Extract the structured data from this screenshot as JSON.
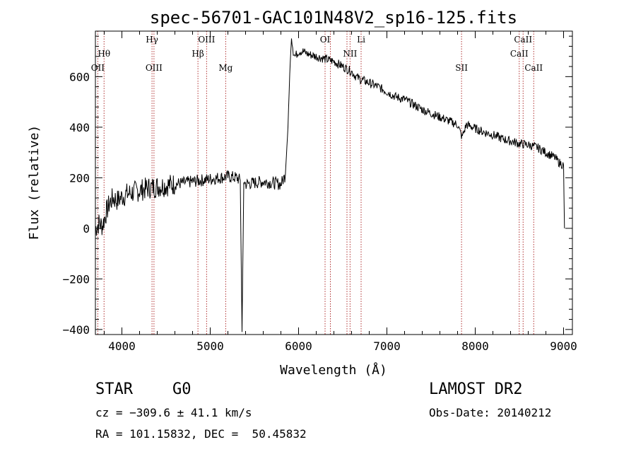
{
  "chart_data": {
    "type": "line",
    "title": "spec-56701-GAC101N48V2_sp16-125.fits",
    "xlabel": "Wavelength (Å)",
    "ylabel": "Flux (relative)",
    "xlim": [
      3700,
      9100
    ],
    "ylim": [
      -420,
      780
    ],
    "xticks": [
      4000,
      5000,
      6000,
      7000,
      8000,
      9000
    ],
    "yticks": [
      -400,
      -200,
      0,
      200,
      400,
      600
    ],
    "grid": false,
    "line_color": "#000000",
    "marker_color": "#b03030",
    "series": [
      {
        "x": [
          3700,
          3740,
          3780,
          3820,
          3860,
          3900,
          3950,
          4000,
          4050,
          4100,
          4200,
          4300,
          4400,
          4500,
          4600,
          4700,
          4800,
          4900,
          5000,
          5100,
          5200,
          5300,
          5340,
          5360,
          5380,
          5400,
          5500,
          5600,
          5700,
          5800,
          5850,
          5880,
          5900,
          5920,
          5940,
          5960,
          5980,
          6000,
          6050,
          6100,
          6200,
          6300,
          6400,
          6500,
          6550,
          6600,
          6650,
          6700,
          6800,
          6900,
          7000,
          7100,
          7200,
          7300,
          7400,
          7500,
          7600,
          7700,
          7800,
          7850,
          7900,
          8000,
          8100,
          8200,
          8300,
          8400,
          8500,
          8600,
          8700,
          8800,
          8900,
          8950,
          9000,
          9010
        ],
        "y": [
          0,
          20,
          10,
          60,
          100,
          120,
          110,
          125,
          135,
          140,
          150,
          160,
          165,
          170,
          175,
          180,
          185,
          190,
          195,
          200,
          205,
          200,
          190,
          -410,
          190,
          175,
          180,
          185,
          180,
          175,
          210,
          400,
          610,
          760,
          700,
          680,
          690,
          700,
          700,
          690,
          680,
          670,
          660,
          640,
          630,
          620,
          600,
          590,
          575,
          560,
          540,
          520,
          510,
          490,
          470,
          455,
          440,
          425,
          410,
          360,
          410,
          395,
          380,
          370,
          355,
          345,
          335,
          330,
          320,
          300,
          280,
          260,
          250,
          0
        ]
      }
    ],
    "line_markers": [
      {
        "label": "Hθ",
        "x": 3798,
        "row": 2
      },
      {
        "label": "OII",
        "x": 3727,
        "row": 3
      },
      {
        "label": "Hγ",
        "x": 4341,
        "row": 1
      },
      {
        "label": "OIII",
        "x": 4363,
        "row": 3
      },
      {
        "label": "OIII",
        "x": 4959,
        "row": 1
      },
      {
        "label": "Hβ",
        "x": 4861,
        "row": 2
      },
      {
        "label": "Mg",
        "x": 5175,
        "row": 3
      },
      {
        "label": "OI",
        "x": 6300,
        "row": 1
      },
      {
        "label": "NII",
        "x": 6583,
        "row": 2
      },
      {
        "label": "Li",
        "x": 6708,
        "row": 1
      },
      {
        "label": "SII",
        "x": 7845,
        "row": 3
      },
      {
        "label": "CaII",
        "x": 8542,
        "row": 1
      },
      {
        "label": "CaII",
        "x": 8498,
        "row": 2
      },
      {
        "label": "CaII",
        "x": 8662,
        "row": 3
      }
    ],
    "extra_marker_lines": [
      6360,
      6548
    ]
  },
  "footer": {
    "object_class": "STAR",
    "subclass": "G0",
    "survey": "LAMOST DR2",
    "cz": "cz = −309.6 ± 41.1 km/s",
    "obs_date": "Obs-Date: 20140212",
    "coords": "RA = 101.15832, DEC =  50.45832"
  }
}
